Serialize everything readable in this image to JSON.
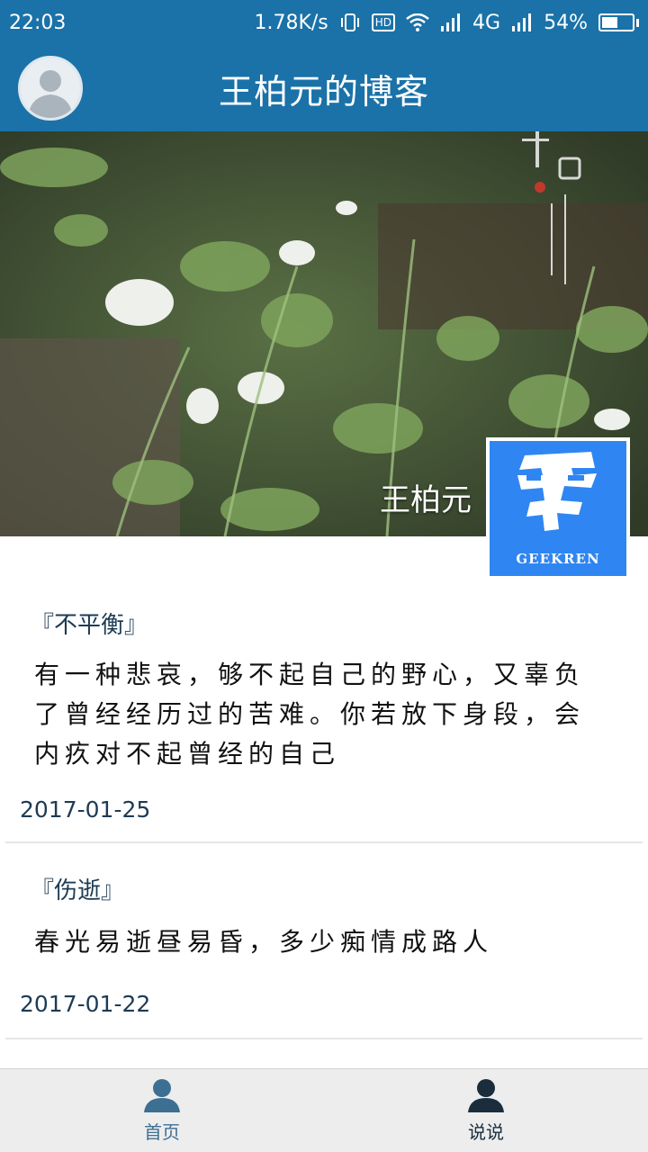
{
  "status_bar": {
    "time": "22:03",
    "net_speed": "1.78K/s",
    "hd_label": "HD",
    "network_type": "4G",
    "battery": "54%",
    "battery_level": 0.54,
    "icons": [
      "vibrate-icon",
      "hd-icon",
      "wifi-icon",
      "signal-icon",
      "signal-icon",
      "battery-icon"
    ]
  },
  "header": {
    "title": "王柏元的博客",
    "avatar_icon": "person-avatar-icon"
  },
  "banner": {
    "name": "王柏元",
    "logo_text": "GEEKREN"
  },
  "posts": [
    {
      "title": "『不平衡』",
      "body": "有一种悲哀，够不起自己的野心，又辜负了曾经经历过的苦难。你若放下身段，会内疚对不起曾经的自己",
      "date": "2017-01-25"
    },
    {
      "title": "『伤逝』",
      "body": "春光易逝昼易昏，多少痴情成路人",
      "date": "2017-01-22"
    }
  ],
  "bottom_nav": {
    "items": [
      {
        "label": "首页",
        "icon": "person-icon"
      },
      {
        "label": "说说",
        "icon": "person-icon"
      }
    ],
    "colors": {
      "home": "#3d6f92",
      "talk": "#1b2d3c"
    }
  },
  "colors": {
    "primary": "#1a72a8",
    "logo_blue": "#2f86f2",
    "text_dark": "#1d3b55"
  }
}
